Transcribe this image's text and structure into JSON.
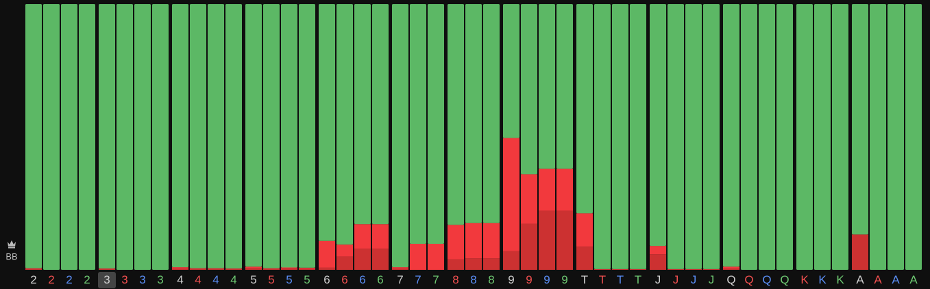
{
  "player": {
    "position_label": "BB",
    "crown_icon": "crown-icon"
  },
  "colors": {
    "background": "#0f0f0f",
    "bar_green": "#5cb865",
    "bar_red": "#f2393d",
    "bar_dark_red": "#cc3131",
    "suit_spade": "#cfcfcf",
    "suit_heart": "#f25050",
    "suit_diamond": "#5b8ef5",
    "suit_club": "#6ec872",
    "highlight_bg": "#444444"
  },
  "chart_data": {
    "type": "bar",
    "stacked": true,
    "ylim": [
      0,
      100
    ],
    "highlighted_index": 4,
    "categories": [
      {
        "rank": "2",
        "suit": "spade"
      },
      {
        "rank": "2",
        "suit": "heart"
      },
      {
        "rank": "2",
        "suit": "diamond"
      },
      {
        "rank": "2",
        "suit": "club"
      },
      {
        "rank": "3",
        "suit": "spade"
      },
      {
        "rank": "3",
        "suit": "heart"
      },
      {
        "rank": "3",
        "suit": "diamond"
      },
      {
        "rank": "3",
        "suit": "club"
      },
      {
        "rank": "4",
        "suit": "spade"
      },
      {
        "rank": "4",
        "suit": "heart"
      },
      {
        "rank": "4",
        "suit": "diamond"
      },
      {
        "rank": "4",
        "suit": "club"
      },
      {
        "rank": "5",
        "suit": "spade"
      },
      {
        "rank": "5",
        "suit": "heart"
      },
      {
        "rank": "5",
        "suit": "diamond"
      },
      {
        "rank": "5",
        "suit": "club"
      },
      {
        "rank": "6",
        "suit": "spade"
      },
      {
        "rank": "6",
        "suit": "heart"
      },
      {
        "rank": "6",
        "suit": "diamond"
      },
      {
        "rank": "6",
        "suit": "club"
      },
      {
        "rank": "7",
        "suit": "spade"
      },
      {
        "rank": "7",
        "suit": "diamond"
      },
      {
        "rank": "7",
        "suit": "club"
      },
      {
        "rank": "8",
        "suit": "heart"
      },
      {
        "rank": "8",
        "suit": "diamond"
      },
      {
        "rank": "8",
        "suit": "club"
      },
      {
        "rank": "9",
        "suit": "spade"
      },
      {
        "rank": "9",
        "suit": "heart"
      },
      {
        "rank": "9",
        "suit": "diamond"
      },
      {
        "rank": "9",
        "suit": "club"
      },
      {
        "rank": "T",
        "suit": "spade"
      },
      {
        "rank": "T",
        "suit": "heart"
      },
      {
        "rank": "T",
        "suit": "diamond"
      },
      {
        "rank": "T",
        "suit": "club"
      },
      {
        "rank": "J",
        "suit": "spade"
      },
      {
        "rank": "J",
        "suit": "heart"
      },
      {
        "rank": "J",
        "suit": "diamond"
      },
      {
        "rank": "J",
        "suit": "club"
      },
      {
        "rank": "Q",
        "suit": "spade"
      },
      {
        "rank": "Q",
        "suit": "heart"
      },
      {
        "rank": "Q",
        "suit": "diamond"
      },
      {
        "rank": "Q",
        "suit": "club"
      },
      {
        "rank": "K",
        "suit": "heart"
      },
      {
        "rank": "K",
        "suit": "diamond"
      },
      {
        "rank": "K",
        "suit": "club"
      },
      {
        "rank": "A",
        "suit": "spade"
      },
      {
        "rank": "A",
        "suit": "heart"
      },
      {
        "rank": "A",
        "suit": "diamond"
      },
      {
        "rank": "A",
        "suit": "club"
      }
    ],
    "groups": [
      {
        "rank": "2",
        "count": 4
      },
      {
        "rank": "3",
        "count": 4
      },
      {
        "rank": "4",
        "count": 4
      },
      {
        "rank": "5",
        "count": 4
      },
      {
        "rank": "6",
        "count": 4
      },
      {
        "rank": "7",
        "count": 3
      },
      {
        "rank": "8",
        "count": 3
      },
      {
        "rank": "9",
        "count": 4
      },
      {
        "rank": "T",
        "count": 4
      },
      {
        "rank": "J",
        "count": 4
      },
      {
        "rank": "Q",
        "count": 4
      },
      {
        "rank": "K",
        "count": 3
      },
      {
        "rank": "A",
        "count": 4
      }
    ],
    "series": [
      {
        "color": "#cc3131",
        "values": [
          0.3,
          0,
          0,
          0,
          0.3,
          0,
          0,
          0,
          0.5,
          0.3,
          0.3,
          0.3,
          0.6,
          0.3,
          0.6,
          0.5,
          0.8,
          5,
          8,
          8,
          0.5,
          0,
          0,
          4,
          4.3,
          4.3,
          7,
          17.3,
          22.3,
          22.3,
          8.7,
          0.3,
          0.3,
          0.3,
          5.9,
          0.3,
          0.3,
          0.3,
          0.5,
          0,
          0,
          0,
          0,
          0,
          0,
          13.3,
          0,
          0,
          0
        ]
      },
      {
        "color": "#f2393d",
        "values": [
          0.3,
          0,
          0,
          0,
          0.2,
          0,
          0,
          0,
          0.5,
          0.3,
          0.3,
          0.2,
          0.6,
          0.3,
          0.3,
          0.3,
          10.1,
          4.5,
          9.2,
          9.2,
          0.5,
          9.8,
          9.8,
          12.9,
          13.3,
          13.3,
          42.6,
          18.7,
          15.7,
          15.7,
          12.6,
          0,
          0,
          0,
          3.1,
          0,
          0,
          0,
          0.7,
          0,
          0,
          0,
          0,
          0,
          0,
          0,
          0,
          0,
          0
        ]
      },
      {
        "color": "#5cb865",
        "values": [
          99.4,
          100,
          100,
          100,
          99.5,
          100,
          100,
          100,
          99,
          99.4,
          99.4,
          99.5,
          98.8,
          99.4,
          99.1,
          99.2,
          89.1,
          90.5,
          82.8,
          82.8,
          99,
          90.2,
          90.2,
          83.1,
          82.4,
          82.4,
          50.4,
          64,
          62,
          62,
          78.7,
          99.7,
          99.7,
          99.7,
          91,
          99.7,
          99.7,
          99.7,
          98.8,
          100,
          100,
          100,
          100,
          100,
          100,
          86.7,
          100,
          100,
          100
        ]
      }
    ]
  }
}
